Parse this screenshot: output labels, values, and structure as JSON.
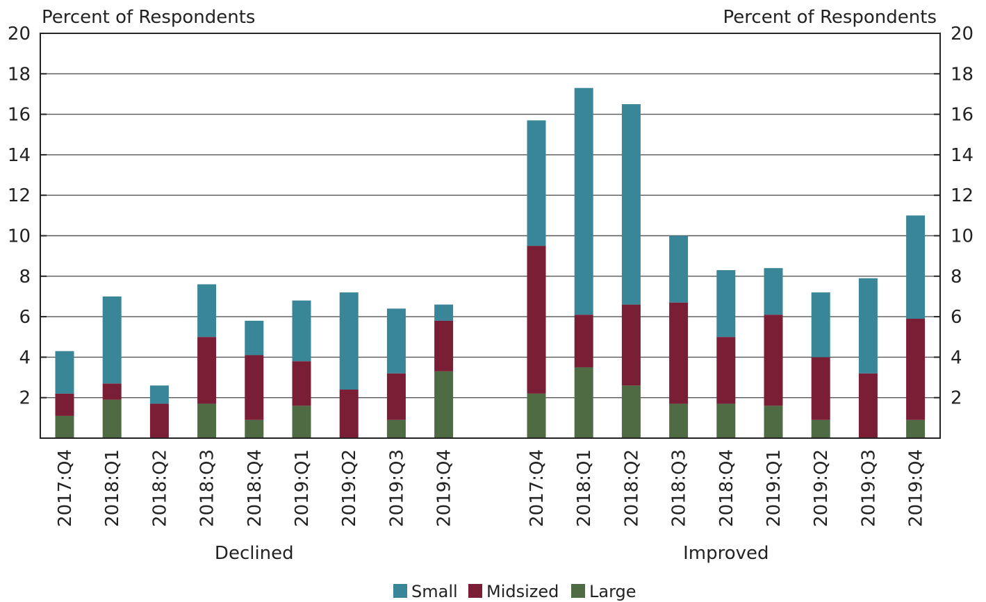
{
  "chart_data": {
    "type": "bar",
    "stacked": true,
    "y_axis_left_title": "Percent of Respondents",
    "y_axis_right_title": "Percent of Respondents",
    "ylim": [
      0,
      20
    ],
    "yticks": [
      2,
      4,
      6,
      8,
      10,
      12,
      14,
      16,
      18,
      20
    ],
    "grid": true,
    "legend_position": "bottom",
    "colors": {
      "Small": "#3a8699",
      "Midsized": "#7a1e35",
      "Large": "#4f6b44"
    },
    "groups": [
      {
        "name": "Declined",
        "categories": [
          "2017:Q4",
          "2018:Q1",
          "2018:Q2",
          "2018:Q3",
          "2018:Q4",
          "2019:Q1",
          "2019:Q2",
          "2019:Q3",
          "2019:Q4"
        ],
        "series": [
          {
            "name": "Large",
            "values": [
              1.1,
              1.9,
              0.0,
              1.7,
              0.9,
              1.6,
              0.0,
              0.9,
              3.3
            ]
          },
          {
            "name": "Midsized",
            "values": [
              1.1,
              0.8,
              1.7,
              3.3,
              3.2,
              2.2,
              2.4,
              2.3,
              2.5
            ]
          },
          {
            "name": "Small",
            "values": [
              2.1,
              4.3,
              0.9,
              2.6,
              1.7,
              3.0,
              4.8,
              3.2,
              0.8
            ]
          }
        ]
      },
      {
        "name": "Improved",
        "categories": [
          "2017:Q4",
          "2018:Q1",
          "2018:Q2",
          "2018:Q3",
          "2018:Q4",
          "2019:Q1",
          "2019:Q2",
          "2019:Q3",
          "2019:Q4"
        ],
        "series": [
          {
            "name": "Large",
            "values": [
              2.2,
              3.5,
              2.6,
              1.7,
              1.7,
              1.6,
              0.9,
              0.0,
              0.9
            ]
          },
          {
            "name": "Midsized",
            "values": [
              7.3,
              2.6,
              4.0,
              5.0,
              3.3,
              4.5,
              3.1,
              3.2,
              5.0
            ]
          },
          {
            "name": "Small",
            "values": [
              6.2,
              11.2,
              9.9,
              3.3,
              3.3,
              2.3,
              3.2,
              4.7,
              5.1
            ]
          }
        ]
      }
    ],
    "legend": [
      "Small",
      "Midsized",
      "Large"
    ]
  }
}
